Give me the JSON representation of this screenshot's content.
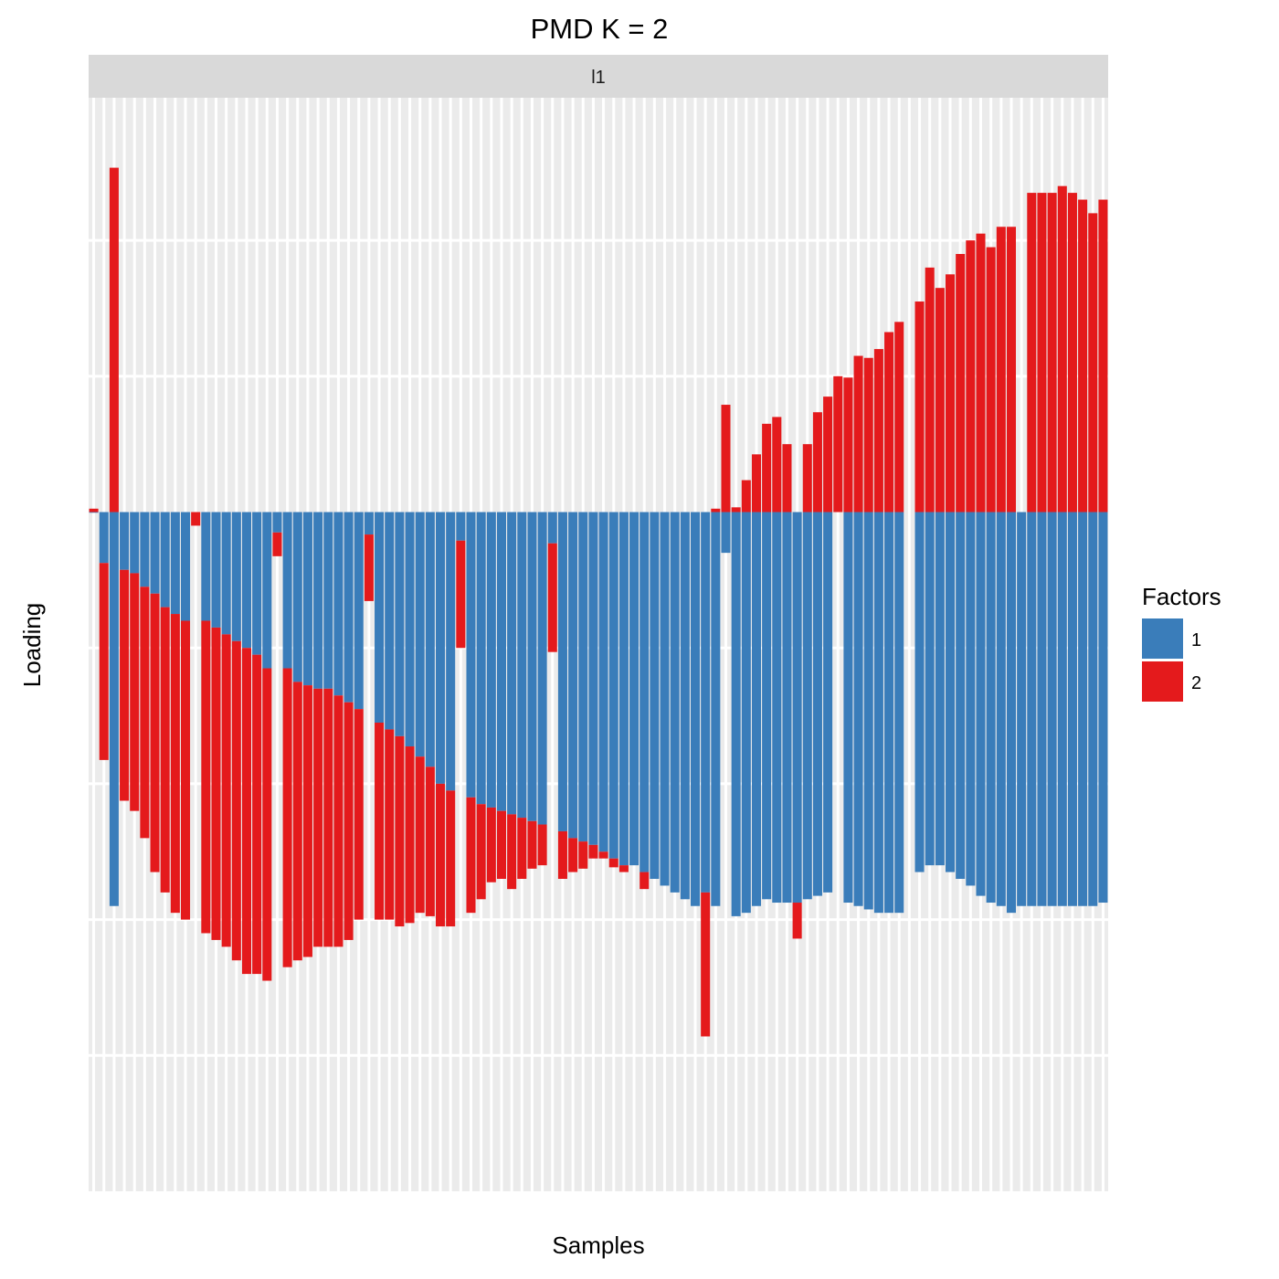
{
  "chart_data": {
    "type": "bar",
    "stacked": true,
    "title": "PMD K = 2",
    "facet_label": "l1",
    "xlabel": "Samples",
    "ylabel": "Loading",
    "y_ticks_shown": false,
    "x_ticks_shown": false,
    "n_samples": 100,
    "ylim": [
      -1.0,
      0.61
    ],
    "y_gridlines": [
      -0.8,
      -0.6,
      -0.4,
      -0.2,
      0.2,
      0.4
    ],
    "grid": true,
    "legend": {
      "title": "Factors",
      "position": "right",
      "entries": [
        "1",
        "2"
      ]
    },
    "colors": {
      "1": "#3a7dba",
      "2": "#e41a1c",
      "panel": "#ebebeb",
      "grid": "#ffffff",
      "strip": "#d9d9d9"
    },
    "series": [
      {
        "name": "1",
        "values": [
          -0.001,
          -0.075,
          -0.58,
          -0.085,
          -0.09,
          -0.11,
          -0.12,
          -0.14,
          -0.15,
          -0.16,
          -0.0,
          -0.16,
          -0.17,
          -0.18,
          -0.19,
          -0.2,
          -0.21,
          -0.23,
          -0.03,
          -0.23,
          -0.25,
          -0.255,
          -0.26,
          -0.26,
          -0.27,
          -0.28,
          -0.29,
          -0.033,
          -0.31,
          -0.32,
          -0.33,
          -0.345,
          -0.36,
          -0.375,
          -0.4,
          -0.41,
          -0.042,
          -0.42,
          -0.43,
          -0.435,
          -0.44,
          -0.445,
          -0.45,
          -0.455,
          -0.46,
          -0.046,
          -0.47,
          -0.48,
          -0.485,
          -0.49,
          -0.5,
          -0.51,
          -0.52,
          -0.52,
          -0.53,
          -0.54,
          -0.55,
          -0.56,
          -0.57,
          -0.58,
          -0.56,
          -0.58,
          -0.06,
          -0.595,
          -0.59,
          -0.58,
          -0.57,
          -0.575,
          -0.575,
          -0.575,
          -0.57,
          -0.565,
          -0.56,
          -0.0,
          -0.575,
          -0.58,
          -0.585,
          -0.59,
          -0.59,
          -0.59,
          -0.0,
          -0.53,
          -0.52,
          -0.52,
          -0.53,
          -0.54,
          -0.55,
          -0.565,
          -0.575,
          -0.58,
          -0.59,
          -0.58,
          -0.58,
          -0.58,
          -0.58,
          -0.58,
          -0.58,
          -0.58,
          -0.58,
          -0.575
        ]
      },
      {
        "name": "2",
        "values": [
          0.005,
          -0.29,
          0.507,
          -0.34,
          -0.35,
          -0.37,
          -0.41,
          -0.42,
          -0.44,
          -0.44,
          -0.02,
          -0.46,
          -0.46,
          -0.46,
          -0.47,
          -0.48,
          -0.47,
          -0.46,
          -0.035,
          -0.44,
          -0.41,
          -0.4,
          -0.38,
          -0.38,
          -0.37,
          -0.35,
          -0.31,
          -0.098,
          -0.29,
          -0.28,
          -0.28,
          -0.26,
          -0.23,
          -0.22,
          -0.21,
          -0.2,
          -0.158,
          -0.17,
          -0.14,
          -0.11,
          -0.1,
          -0.11,
          -0.09,
          -0.07,
          -0.06,
          -0.16,
          -0.07,
          -0.05,
          -0.04,
          -0.02,
          -0.01,
          -0.013,
          -0.01,
          -0.0,
          -0.025,
          -0.0,
          -0.0,
          -0.0,
          -0.0,
          -0.0,
          -0.212,
          0.005,
          0.158,
          0.007,
          0.047,
          0.085,
          0.13,
          0.14,
          0.1,
          -0.053,
          0.1,
          0.147,
          0.17,
          0.2,
          0.198,
          0.23,
          0.227,
          0.24,
          0.265,
          0.28,
          -0.0,
          0.31,
          0.36,
          0.33,
          0.35,
          0.38,
          0.4,
          0.41,
          0.39,
          0.42,
          0.42,
          -0.0,
          0.47,
          0.47,
          0.47,
          0.48,
          0.47,
          0.46,
          0.44,
          0.46
        ]
      }
    ]
  }
}
